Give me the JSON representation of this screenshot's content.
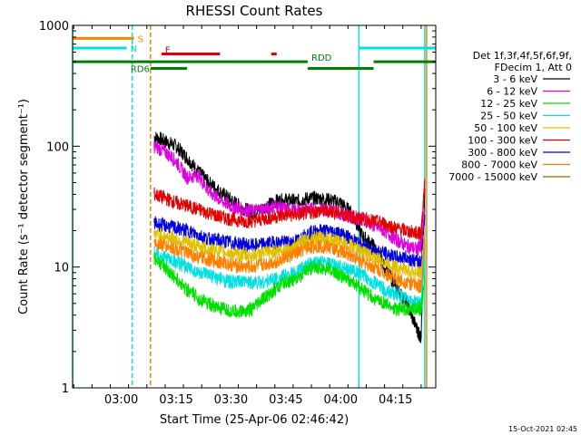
{
  "chart_data": {
    "type": "line",
    "title": "RHESSI Count Rates",
    "xlabel": "Start Time (25-Apr-06 02:46:42)",
    "ylabel": "Count Rate (s⁻¹ detector segment⁻¹)",
    "yscale": "log",
    "ylim": [
      1,
      1000
    ],
    "xlim": [
      "02:46:42",
      "04:26:00"
    ],
    "xticks": [
      "03:00",
      "03:15",
      "03:30",
      "03:45",
      "04:00",
      "04:15"
    ],
    "yticks": [
      "1",
      "10",
      "100",
      "1000"
    ],
    "timestamp": "15-Oct-2021 02:45",
    "legend": {
      "position": "right",
      "header": [
        "Det 1f,3f,4f,5f,6f,9f,",
        "FDecim 1, Att 0"
      ],
      "entries": [
        {
          "label": "3 - 6 keV",
          "color": "#000000"
        },
        {
          "label": "6 - 12 keV",
          "color": "#e000e0"
        },
        {
          "label": "12 - 25 keV",
          "color": "#00e000"
        },
        {
          "label": "25 - 50 keV",
          "color": "#00e0e0"
        },
        {
          "label": "50 - 100 keV",
          "color": "#e0c000"
        },
        {
          "label": "100 - 300 keV",
          "color": "#e00000"
        },
        {
          "label": "300 - 800 keV",
          "color": "#0000e0"
        },
        {
          "label": "800 - 7000 keV",
          "color": "#ff8000"
        },
        {
          "label": "7000 - 15000 keV",
          "color": "#a06000"
        }
      ]
    },
    "state_bars": [
      {
        "label": "S",
        "color": "#ff8000",
        "level": 780,
        "segments": [
          [
            "02:46:42",
            "03:03:30"
          ]
        ]
      },
      {
        "label": "N",
        "color": "#00e0e0",
        "level": 650,
        "segments": [
          [
            "02:46:42",
            "03:01:30"
          ],
          [
            "04:05:00",
            "04:26:00"
          ]
        ]
      },
      {
        "label": "F",
        "color": "#e00000",
        "level": 580,
        "segments": [
          [
            "03:11:00",
            "03:27:00"
          ],
          [
            "03:41:00",
            "03:42:30"
          ]
        ]
      },
      {
        "label": "RDD",
        "color": "#008000",
        "level": 500,
        "segments": [
          [
            "02:46:42",
            "03:51:00"
          ],
          [
            "04:09:00",
            "04:26:00"
          ]
        ]
      },
      {
        "label": "RD6",
        "color": "#008000",
        "level": 440,
        "segments": [
          [
            "03:08:00",
            "03:18:00"
          ],
          [
            "03:51:00",
            "04:09:00"
          ]
        ]
      }
    ],
    "markers": [
      {
        "time": "02:46:42",
        "color": "#00e0e0",
        "style": "solid"
      },
      {
        "time": "03:03:00",
        "color": "#00e0e0",
        "style": "dashed"
      },
      {
        "time": "03:08:00",
        "color": "#ff8000",
        "style": "dashed"
      },
      {
        "time": "04:05:00",
        "color": "#00e0e0",
        "style": "solid"
      },
      {
        "time": "04:23:00",
        "color": "#00e0e0",
        "style": "solid"
      },
      {
        "time": "04:23:30",
        "color": "#ff8000",
        "style": "solid"
      }
    ],
    "data_start": "03:09:00",
    "data_end": "04:23:00",
    "series": [
      {
        "name": "3 - 6 keV",
        "color": "#000000",
        "x": [
          "03:09",
          "03:12",
          "03:15",
          "03:18",
          "03:21",
          "03:24",
          "03:27",
          "03:30",
          "03:33",
          "03:36",
          "03:39",
          "03:42",
          "03:45",
          "03:48",
          "03:51",
          "03:54",
          "03:57",
          "04:00",
          "04:03",
          "04:06",
          "04:09",
          "04:12",
          "04:15",
          "04:18",
          "04:21",
          "04:22",
          "04:23"
        ],
        "y": [
          120,
          110,
          100,
          80,
          62,
          50,
          42,
          36,
          31,
          28,
          31,
          35,
          36,
          35,
          37,
          37,
          36,
          34,
          28,
          18,
          15,
          10,
          7,
          5,
          3,
          2.5,
          45
        ]
      },
      {
        "name": "6 - 12 keV",
        "color": "#e000e0",
        "x": [
          "03:09",
          "03:12",
          "03:15",
          "03:18",
          "03:21",
          "03:24",
          "03:27",
          "03:30",
          "03:33",
          "03:36",
          "03:39",
          "03:42",
          "03:45",
          "03:48",
          "03:51",
          "03:54",
          "03:57",
          "04:00",
          "04:03",
          "04:06",
          "04:09",
          "04:12",
          "04:15",
          "04:18",
          "04:21",
          "04:22",
          "04:23"
        ],
        "y": [
          100,
          90,
          75,
          55,
          58,
          42,
          36,
          32,
          30,
          29,
          30,
          32,
          30,
          29,
          30,
          30,
          30,
          28,
          26,
          25,
          22,
          20,
          17,
          15,
          14,
          15,
          30
        ]
      },
      {
        "name": "100 - 300 keV",
        "color": "#e00000",
        "x": [
          "03:09",
          "03:12",
          "03:15",
          "03:18",
          "03:21",
          "03:24",
          "03:27",
          "03:30",
          "03:33",
          "03:36",
          "03:39",
          "03:42",
          "03:45",
          "03:48",
          "03:51",
          "03:54",
          "03:57",
          "04:00",
          "04:03",
          "04:06",
          "04:09",
          "04:12",
          "04:15",
          "04:18",
          "04:21",
          "04:22",
          "04:23"
        ],
        "y": [
          40,
          37,
          34,
          32,
          30,
          28,
          26,
          25,
          24,
          24,
          25,
          26,
          27,
          27,
          28,
          29,
          29,
          28,
          26,
          25,
          24,
          23,
          21,
          20,
          19,
          19,
          50
        ]
      },
      {
        "name": "300 - 800 keV",
        "color": "#0000e0",
        "x": [
          "03:09",
          "03:12",
          "03:15",
          "03:18",
          "03:21",
          "03:24",
          "03:27",
          "03:30",
          "03:33",
          "03:36",
          "03:39",
          "03:42",
          "03:45",
          "03:48",
          "03:51",
          "03:54",
          "03:57",
          "04:00",
          "04:03",
          "04:06",
          "04:09",
          "04:12",
          "04:15",
          "04:18",
          "04:21",
          "04:22",
          "04:23"
        ],
        "y": [
          23,
          22,
          21,
          20,
          18.5,
          17,
          16.5,
          16,
          15.5,
          15,
          15.5,
          16,
          16,
          16.5,
          19,
          20,
          20,
          19,
          17,
          15,
          14,
          13,
          12,
          12,
          11,
          11,
          25
        ]
      },
      {
        "name": "50 - 100 keV",
        "color": "#e0c000",
        "x": [
          "03:09",
          "03:12",
          "03:15",
          "03:18",
          "03:21",
          "03:24",
          "03:27",
          "03:30",
          "03:33",
          "03:36",
          "03:39",
          "03:42",
          "03:45",
          "03:48",
          "03:51",
          "03:54",
          "03:57",
          "04:00",
          "04:03",
          "04:06",
          "04:09",
          "04:12",
          "04:15",
          "04:18",
          "04:21",
          "04:22",
          "04:23"
        ],
        "y": [
          19,
          18,
          17,
          16,
          15,
          14,
          13.5,
          13,
          12.5,
          12.5,
          13,
          13.5,
          14,
          15,
          17,
          17.5,
          17,
          16,
          15,
          13.5,
          12,
          11,
          10,
          9.5,
          9,
          9,
          20
        ]
      },
      {
        "name": "800 - 7000 keV",
        "color": "#ff8000",
        "x": [
          "03:09",
          "03:12",
          "03:15",
          "03:18",
          "03:21",
          "03:24",
          "03:27",
          "03:30",
          "03:33",
          "03:36",
          "03:39",
          "03:42",
          "03:45",
          "03:48",
          "03:51",
          "03:54",
          "03:57",
          "04:00",
          "04:03",
          "04:06",
          "04:09",
          "04:12",
          "04:15",
          "04:18",
          "04:21",
          "04:22",
          "04:23"
        ],
        "y": [
          16,
          15,
          14,
          13,
          12,
          11.5,
          11,
          10.5,
          10,
          10,
          10.5,
          11,
          12,
          13,
          14.5,
          15,
          14.5,
          13.5,
          12.5,
          11,
          10,
          9,
          8,
          7.5,
          7,
          7,
          16
        ]
      },
      {
        "name": "25 - 50 keV",
        "color": "#00e0e0",
        "x": [
          "03:09",
          "03:12",
          "03:15",
          "03:18",
          "03:21",
          "03:24",
          "03:27",
          "03:30",
          "03:33",
          "03:36",
          "03:39",
          "03:42",
          "03:45",
          "03:48",
          "03:51",
          "03:54",
          "03:57",
          "04:00",
          "04:03",
          "04:06",
          "04:09",
          "04:12",
          "04:15",
          "04:18",
          "04:21",
          "04:22",
          "04:23"
        ],
        "y": [
          13,
          12,
          11,
          10,
          9,
          8.5,
          8,
          7.5,
          7.5,
          7.5,
          7.5,
          8,
          8.5,
          9,
          10.5,
          11,
          10.5,
          10,
          9.5,
          8.5,
          7.5,
          6.5,
          6,
          5.5,
          5,
          5,
          12
        ]
      },
      {
        "name": "12 - 25 keV",
        "color": "#00e000",
        "x": [
          "03:09",
          "03:12",
          "03:15",
          "03:18",
          "03:21",
          "03:24",
          "03:27",
          "03:30",
          "03:33",
          "03:36",
          "03:39",
          "03:42",
          "03:45",
          "03:48",
          "03:51",
          "03:54",
          "03:57",
          "04:00",
          "04:03",
          "04:06",
          "04:09",
          "04:12",
          "04:15",
          "04:18",
          "04:21",
          "04:22",
          "04:23"
        ],
        "y": [
          12,
          10,
          8,
          6.5,
          5.5,
          5,
          4.5,
          4.3,
          4.3,
          4.5,
          5.5,
          6.5,
          7.5,
          8,
          9.5,
          10,
          9.5,
          8.5,
          7.5,
          6.5,
          5.5,
          5,
          4.5,
          4.5,
          4.5,
          4.5,
          8
        ]
      }
    ]
  }
}
